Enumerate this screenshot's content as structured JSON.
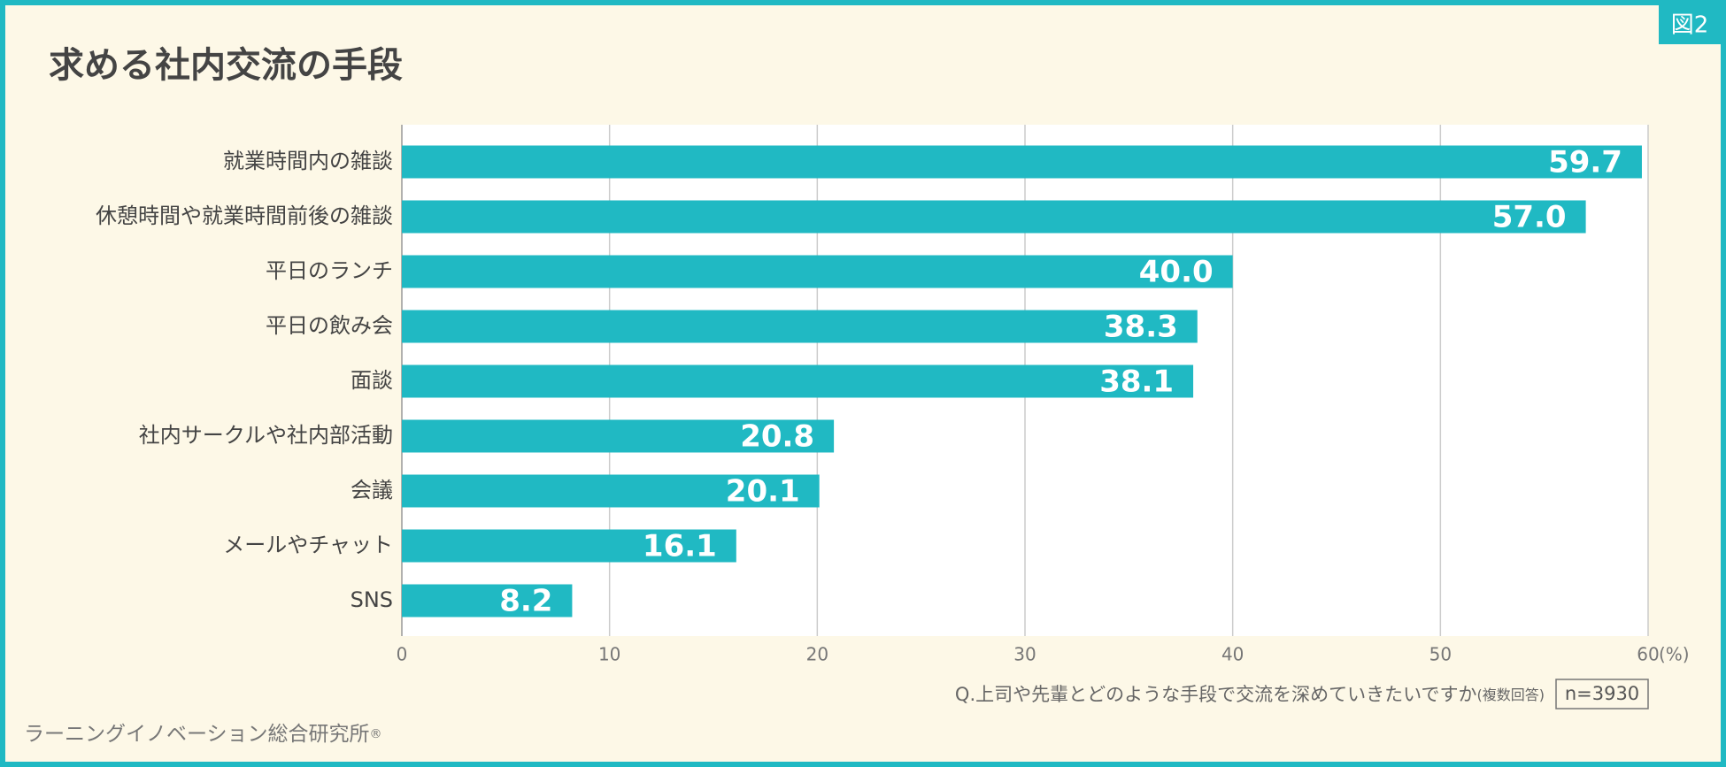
{
  "badge": "図2",
  "footer": {
    "org": "ラーニングイノベーション総合研究所",
    "mark": "®"
  },
  "chart_data": {
    "type": "bar",
    "horizontal": true,
    "title": "求める社内交流の手段",
    "categories": [
      "就業時間内の雑談",
      "休憩時間や就業時間前後の雑談",
      "平日のランチ",
      "平日の飲み会",
      "面談",
      "社内サークルや社内部活動",
      "会議",
      "メールやチャット",
      "SNS"
    ],
    "values": [
      59.7,
      57,
      40,
      38.3,
      38.1,
      20.8,
      20.1,
      16.1,
      8.2
    ],
    "value_labels": [
      "59.7",
      "57.0",
      "40.0",
      "38.3",
      "38.1",
      "20.8",
      "20.1",
      "16.1",
      "8.2"
    ],
    "color": "#20b9c3",
    "xlim": [
      0,
      60
    ],
    "xticks": [
      0,
      10,
      20,
      30,
      40,
      50,
      60
    ],
    "x_unit": "(%)",
    "grid": true,
    "question": "Q.上司や先輩とどのような手段で交流を深めていきたいですか",
    "question_note": "(複数回答)",
    "sample": "n=3930"
  }
}
